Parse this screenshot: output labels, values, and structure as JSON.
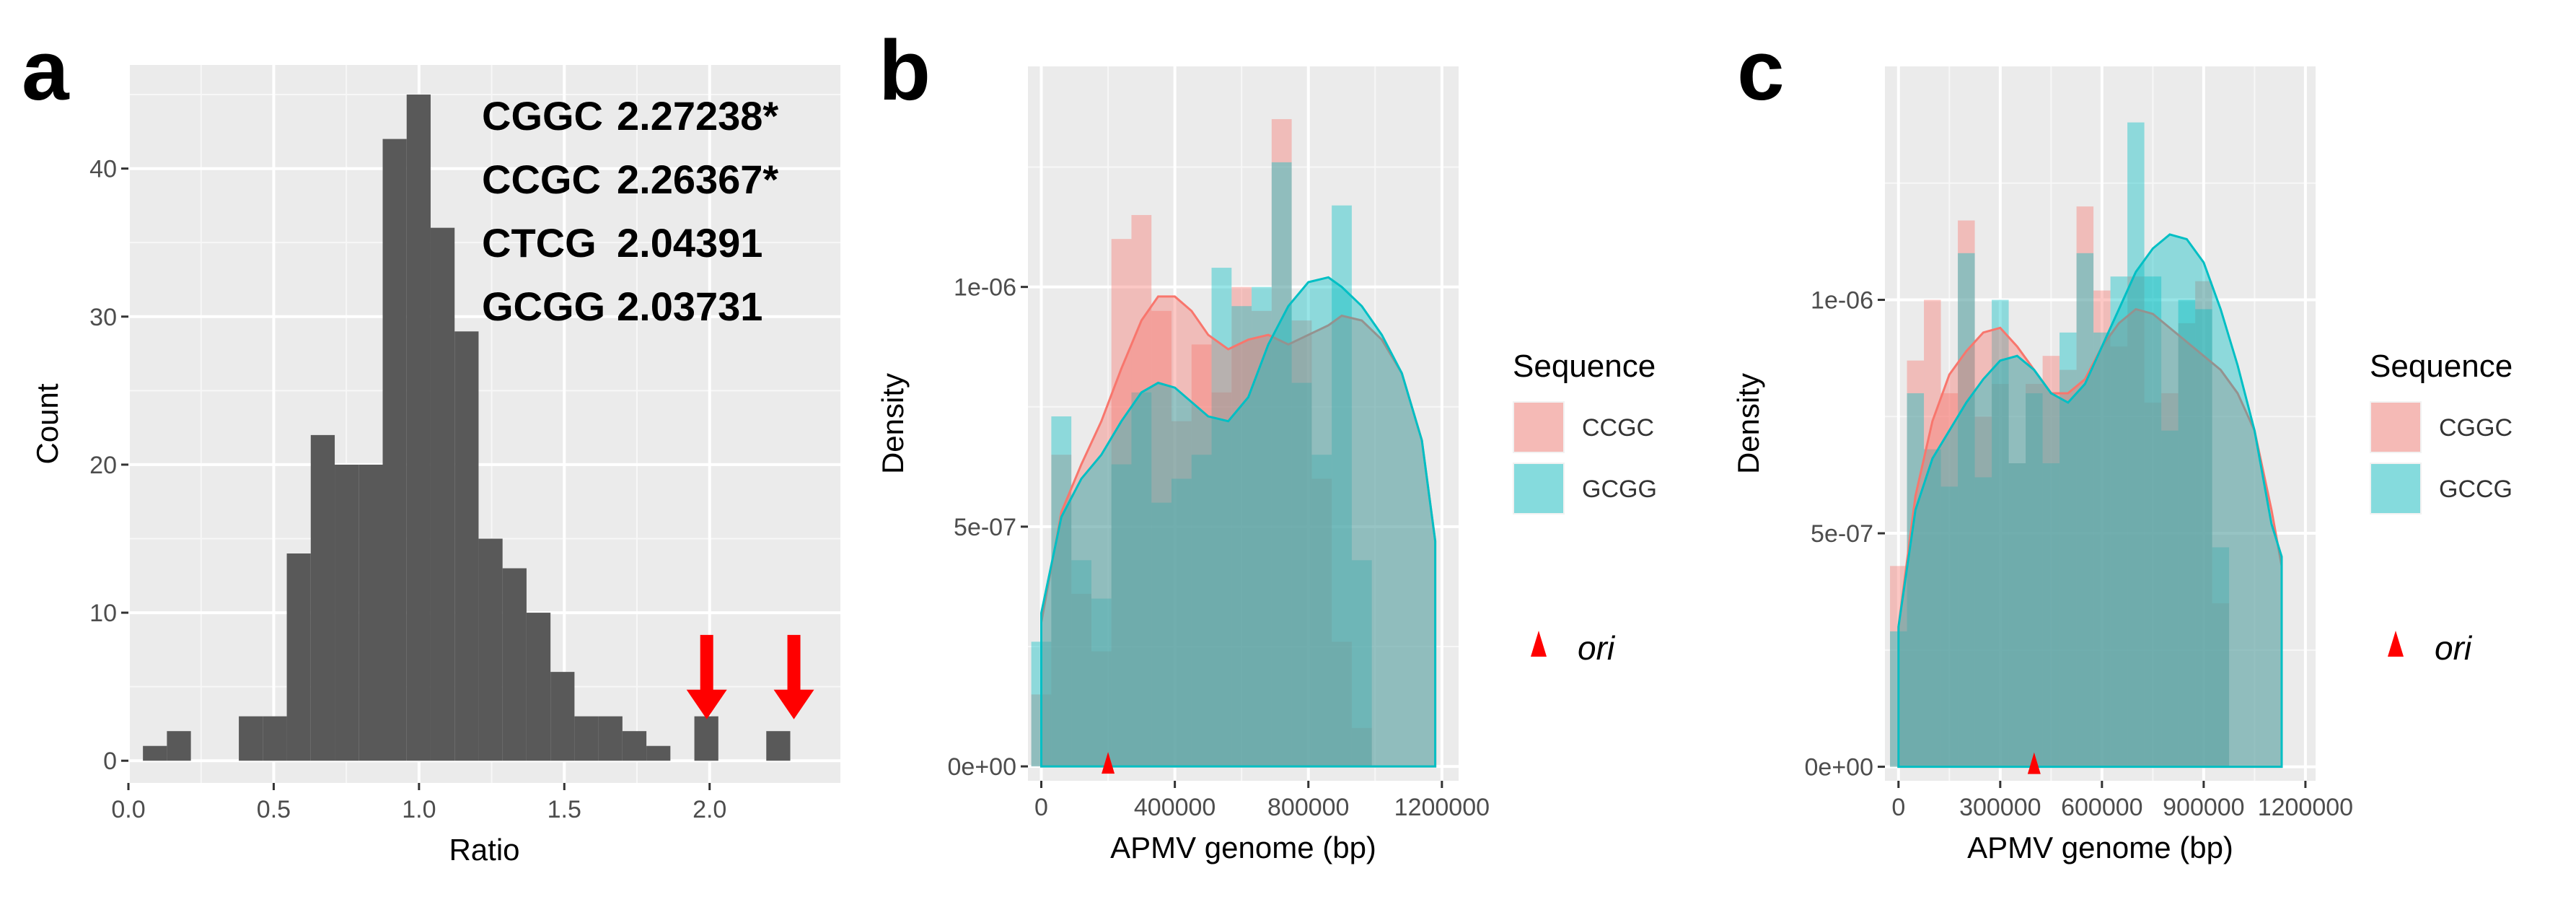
{
  "chart_data": [
    {
      "panel": "a",
      "type": "histogram",
      "title": "",
      "xlabel": "Ratio",
      "ylabel": "Count",
      "xlim": [
        0.0,
        2.45
      ],
      "ylim": [
        -1.5,
        47
      ],
      "xticks": [
        "0.0",
        "0.5",
        "1.0",
        "1.5",
        "2.0"
      ],
      "yticks": [
        "0",
        "10",
        "20",
        "30",
        "40"
      ],
      "bin_width": 0.0825,
      "bin_starts": [
        0.05,
        0.1325,
        0.215,
        0.2975,
        0.38,
        0.4625,
        0.545,
        0.6275,
        0.71,
        0.7925,
        0.875,
        0.9575,
        1.04,
        1.1225,
        1.205,
        1.2875,
        1.37,
        1.4525,
        1.535,
        1.6175,
        1.7,
        1.7825,
        1.865,
        1.9475,
        2.03,
        2.1125,
        2.195,
        2.2775
      ],
      "counts": [
        1,
        2,
        0,
        0,
        3,
        3,
        14,
        22,
        20,
        20,
        42,
        45,
        36,
        29,
        15,
        13,
        10,
        6,
        3,
        3,
        2,
        1,
        0,
        3,
        0,
        0,
        2,
        0
      ],
      "annotations": [
        {
          "seq": "CGGC",
          "value": "2.27238*"
        },
        {
          "seq": "CCGC",
          "value": "2.26367*"
        },
        {
          "seq": "CTCG",
          "value": "2.04391"
        },
        {
          "seq": "GCGG",
          "value": "2.03731"
        }
      ],
      "arrows_at": [
        1.99,
        2.29
      ],
      "arrow_color": "#ff0000",
      "bar_color": "#595959"
    },
    {
      "panel": "b",
      "type": "histogram+density",
      "xlabel": "APMV genome (bp)",
      "ylabel": "Density",
      "xlim": [
        -40000,
        1250000
      ],
      "ylim": [
        -3e-08,
        1.46e-06
      ],
      "xticks": [
        "0",
        "400000",
        "800000",
        "1200000"
      ],
      "yticks": [
        "0e+00",
        "5e-07",
        "1e-06"
      ],
      "legend_title": "Sequence",
      "bin_width": 60000,
      "x_start": -30000,
      "series": [
        {
          "name": "CCGC",
          "color": "#f8766d",
          "hist": [
            0.15,
            0.65,
            0.36,
            0.24,
            1.1,
            1.15,
            0.95,
            0.72,
            0.88,
            0.78,
            1.0,
            0.95,
            1.35,
            0.93,
            0.6,
            0.26,
            0.08
          ],
          "density": [
            [
              0,
              0.3
            ],
            [
              60000,
              0.53
            ],
            [
              120000,
              0.63
            ],
            [
              180000,
              0.72
            ],
            [
              240000,
              0.83
            ],
            [
              300000,
              0.93
            ],
            [
              350000,
              0.98
            ],
            [
              400000,
              0.98
            ],
            [
              450000,
              0.95
            ],
            [
              500000,
              0.9
            ],
            [
              560000,
              0.87
            ],
            [
              620000,
              0.89
            ],
            [
              680000,
              0.9
            ],
            [
              740000,
              0.88
            ],
            [
              800000,
              0.9
            ],
            [
              860000,
              0.92
            ],
            [
              900000,
              0.94
            ],
            [
              960000,
              0.93
            ],
            [
              1020000,
              0.89
            ],
            [
              1080000,
              0.82
            ],
            [
              1140000,
              0.68
            ],
            [
              1180000,
              0.47
            ]
          ]
        },
        {
          "name": "GCGG",
          "color": "#00bfc4",
          "hist": [
            0.26,
            0.73,
            0.43,
            0.35,
            0.63,
            0.78,
            0.55,
            0.6,
            0.65,
            1.04,
            0.96,
            1.0,
            1.26,
            0.8,
            0.65,
            1.17,
            0.43
          ],
          "density": [
            [
              0,
              0.32
            ],
            [
              60000,
              0.52
            ],
            [
              120000,
              0.6
            ],
            [
              180000,
              0.65
            ],
            [
              240000,
              0.72
            ],
            [
              300000,
              0.78
            ],
            [
              350000,
              0.8
            ],
            [
              400000,
              0.79
            ],
            [
              450000,
              0.76
            ],
            [
              500000,
              0.73
            ],
            [
              560000,
              0.72
            ],
            [
              620000,
              0.77
            ],
            [
              680000,
              0.88
            ],
            [
              740000,
              0.96
            ],
            [
              800000,
              1.01
            ],
            [
              860000,
              1.02
            ],
            [
              900000,
              1.0
            ],
            [
              960000,
              0.96
            ],
            [
              1020000,
              0.9
            ],
            [
              1080000,
              0.82
            ],
            [
              1140000,
              0.68
            ],
            [
              1180000,
              0.47
            ]
          ]
        }
      ],
      "ori_position": 200000,
      "ori_label": "ori",
      "ori_color": "#ff0000"
    },
    {
      "panel": "c",
      "type": "histogram+density",
      "xlabel": "APMV genome (bp)",
      "ylabel": "Density",
      "xlim": [
        -40000,
        1230000
      ],
      "ylim": [
        -3e-08,
        1.5e-06
      ],
      "xticks": [
        "0",
        "300000",
        "600000",
        "900000",
        "1200000"
      ],
      "yticks": [
        "0e+00",
        "5e-07",
        "1e-06"
      ],
      "legend_title": "Sequence",
      "bin_width": 50000,
      "x_start": -25000,
      "series": [
        {
          "name": "CGGC",
          "color": "#f8766d",
          "hist": [
            0.43,
            0.87,
            1.0,
            0.8,
            1.17,
            0.75,
            0.82,
            0.65,
            0.82,
            0.88,
            0.85,
            1.2,
            1.02,
            0.9,
            1.05,
            0.78,
            0.8,
            0.95,
            1.04,
            0.35
          ],
          "density": [
            [
              0,
              0.3
            ],
            [
              50000,
              0.58
            ],
            [
              100000,
              0.74
            ],
            [
              150000,
              0.84
            ],
            [
              200000,
              0.89
            ],
            [
              250000,
              0.93
            ],
            [
              300000,
              0.94
            ],
            [
              350000,
              0.9
            ],
            [
              400000,
              0.85
            ],
            [
              450000,
              0.8
            ],
            [
              500000,
              0.8
            ],
            [
              550000,
              0.83
            ],
            [
              600000,
              0.9
            ],
            [
              650000,
              0.95
            ],
            [
              700000,
              0.98
            ],
            [
              750000,
              0.97
            ],
            [
              800000,
              0.94
            ],
            [
              850000,
              0.91
            ],
            [
              900000,
              0.88
            ],
            [
              950000,
              0.85
            ],
            [
              1000000,
              0.8
            ],
            [
              1050000,
              0.72
            ],
            [
              1100000,
              0.55
            ],
            [
              1130000,
              0.43
            ]
          ]
        },
        {
          "name": "GCCG",
          "color": "#00bfc4",
          "hist": [
            0.29,
            0.8,
            0.68,
            0.6,
            1.1,
            0.62,
            1.0,
            0.65,
            0.8,
            0.65,
            0.93,
            1.1,
            0.93,
            1.05,
            1.38,
            1.05,
            0.72,
            1.0,
            0.98,
            0.47
          ],
          "density": [
            [
              0,
              0.3
            ],
            [
              50000,
              0.55
            ],
            [
              100000,
              0.66
            ],
            [
              150000,
              0.72
            ],
            [
              200000,
              0.78
            ],
            [
              250000,
              0.83
            ],
            [
              300000,
              0.87
            ],
            [
              350000,
              0.88
            ],
            [
              400000,
              0.85
            ],
            [
              450000,
              0.8
            ],
            [
              500000,
              0.78
            ],
            [
              550000,
              0.82
            ],
            [
              600000,
              0.9
            ],
            [
              650000,
              0.98
            ],
            [
              700000,
              1.06
            ],
            [
              750000,
              1.11
            ],
            [
              800000,
              1.14
            ],
            [
              850000,
              1.13
            ],
            [
              900000,
              1.08
            ],
            [
              950000,
              0.98
            ],
            [
              1000000,
              0.86
            ],
            [
              1050000,
              0.72
            ],
            [
              1100000,
              0.52
            ],
            [
              1130000,
              0.45
            ]
          ]
        }
      ],
      "ori_position": 400000,
      "ori_label": "ori",
      "ori_color": "#ff0000"
    }
  ],
  "panels": {
    "a": "a",
    "b": "b",
    "c": "c"
  }
}
